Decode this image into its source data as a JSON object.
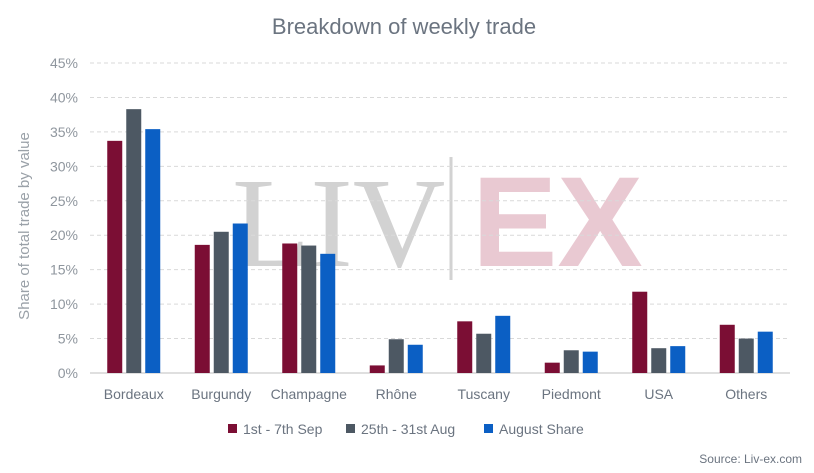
{
  "chart_data": {
    "type": "bar",
    "title": "Breakdown of weekly trade",
    "ylabel": "Share of total trade by value",
    "xlabel": "",
    "ylim": [
      0,
      45
    ],
    "yticks": [
      0,
      5,
      10,
      15,
      20,
      25,
      30,
      35,
      40,
      45
    ],
    "ytick_labels": [
      "0%",
      "5%",
      "10%",
      "15%",
      "20%",
      "25%",
      "30%",
      "35%",
      "40%",
      "45%"
    ],
    "grid": true,
    "legend_position": "bottom",
    "categories": [
      "Bordeaux",
      "Burgundy",
      "Champagne",
      "Rhône",
      "Tuscany",
      "Piedmont",
      "USA",
      "Others"
    ],
    "series": [
      {
        "name": "1st - 7th Sep",
        "color": "#7b0e34",
        "values": [
          33.7,
          18.6,
          18.8,
          1.1,
          7.5,
          1.5,
          11.8,
          7.0
        ]
      },
      {
        "name": "25th - 31st Aug",
        "color": "#4d5863",
        "values": [
          38.3,
          20.5,
          18.5,
          4.9,
          5.7,
          3.3,
          3.6,
          5.0
        ]
      },
      {
        "name": "August Share",
        "color": "#0b5fc4",
        "values": [
          35.4,
          21.7,
          17.3,
          4.1,
          8.3,
          3.1,
          3.9,
          6.0
        ]
      }
    ]
  },
  "watermark": {
    "left": "LIV",
    "right": "EX"
  },
  "source": "Source: Liv-ex.com"
}
